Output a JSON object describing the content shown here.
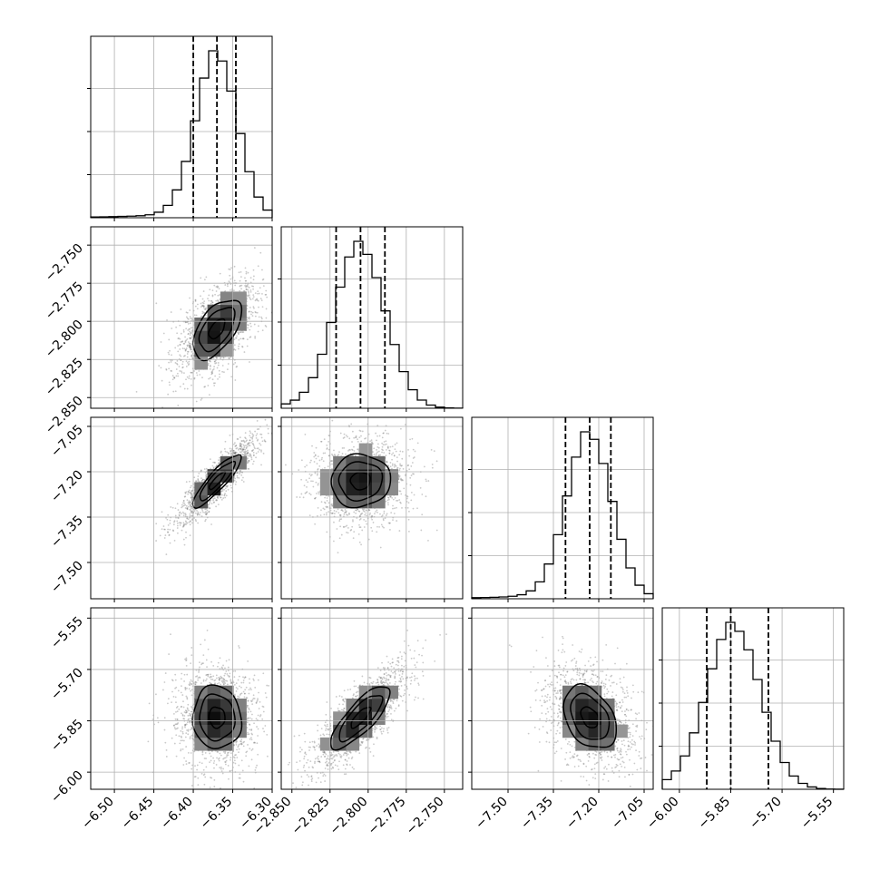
{
  "chart_data": {
    "type": "corner",
    "title": "",
    "parameters": [
      {
        "label": "",
        "range": [
          -6.53,
          -6.3
        ],
        "ticks": [
          -6.5,
          -6.45,
          -6.4,
          -6.35,
          -6.3
        ],
        "tick_labels": [
          "−6.50",
          "−6.45",
          "−6.40",
          "−6.35",
          "−6.30"
        ],
        "quantiles": [
          -6.4,
          -6.37,
          -6.346
        ],
        "mean": -6.37,
        "sd": 0.026
      },
      {
        "label": "",
        "range": [
          -2.857,
          -2.738
        ],
        "ticks": [
          -2.85,
          -2.825,
          -2.8,
          -2.775,
          -2.75
        ],
        "tick_labels": [
          "−2.850",
          "−2.825",
          "−2.800",
          "−2.775",
          "−2.750"
        ],
        "quantiles": [
          -2.821,
          -2.805,
          -2.789
        ],
        "mean": -2.805,
        "sd": 0.0165
      },
      {
        "label": "",
        "range": [
          -7.62,
          -7.02
        ],
        "ticks": [
          -7.5,
          -7.35,
          -7.2,
          -7.05
        ],
        "tick_labels": [
          "−7.50",
          "−7.35",
          "−7.20",
          "−7.05"
        ],
        "quantiles": [
          -7.31,
          -7.23,
          -7.16
        ],
        "mean": -7.23,
        "sd": 0.074
      },
      {
        "label": "",
        "range": [
          -6.05,
          -5.52
        ],
        "ticks": [
          -6.0,
          -5.85,
          -5.7,
          -5.55
        ],
        "tick_labels": [
          "−6.00",
          "−5.85",
          "−5.70",
          "−5.55"
        ],
        "quantiles": [
          -5.92,
          -5.85,
          -5.74
        ],
        "mean": -5.84,
        "sd": 0.078
      }
    ],
    "correlations": {
      "1-0": 0.55,
      "2-0": 0.88,
      "2-1": 0.05,
      "3-0": -0.05,
      "3-1": 0.8,
      "3-2": -0.35
    },
    "contour_levels": [
      0.39,
      0.86,
      1.18
    ],
    "quantile_probs": [
      0.16,
      0.5,
      0.84
    ],
    "grid": true,
    "colors": {
      "scatter": "#666666",
      "contour": "#000000",
      "hist": "#000000",
      "grid": "#b0b0b0"
    }
  }
}
